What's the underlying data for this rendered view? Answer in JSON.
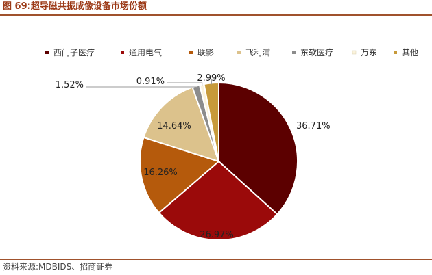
{
  "figure": {
    "title": "图 69:超导磁共振成像设备市场份额",
    "source": "资料来源:MDBIDS、招商证券"
  },
  "chart_data": {
    "type": "pie",
    "title": "",
    "legend_position": "top",
    "slices": [
      {
        "name": "西门子医疗",
        "value": 36.71,
        "label": "36.71%",
        "color": "#5c0000"
      },
      {
        "name": "通用电气",
        "value": 26.97,
        "label": "26.97%",
        "color": "#9b0a0a"
      },
      {
        "name": "联影",
        "value": 16.26,
        "label": "16.26%",
        "color": "#b55a0c"
      },
      {
        "name": "飞利浦",
        "value": 14.64,
        "label": "14.64%",
        "color": "#dcc28c"
      },
      {
        "name": "东软医疗",
        "value": 1.52,
        "label": "1.52%",
        "color": "#8c8c8c"
      },
      {
        "name": "万东",
        "value": 0.91,
        "label": "0.91%",
        "color": "#fbf3dc"
      },
      {
        "name": "其他",
        "value": 2.99,
        "label": "2.99%",
        "color": "#c79a3a"
      }
    ]
  }
}
